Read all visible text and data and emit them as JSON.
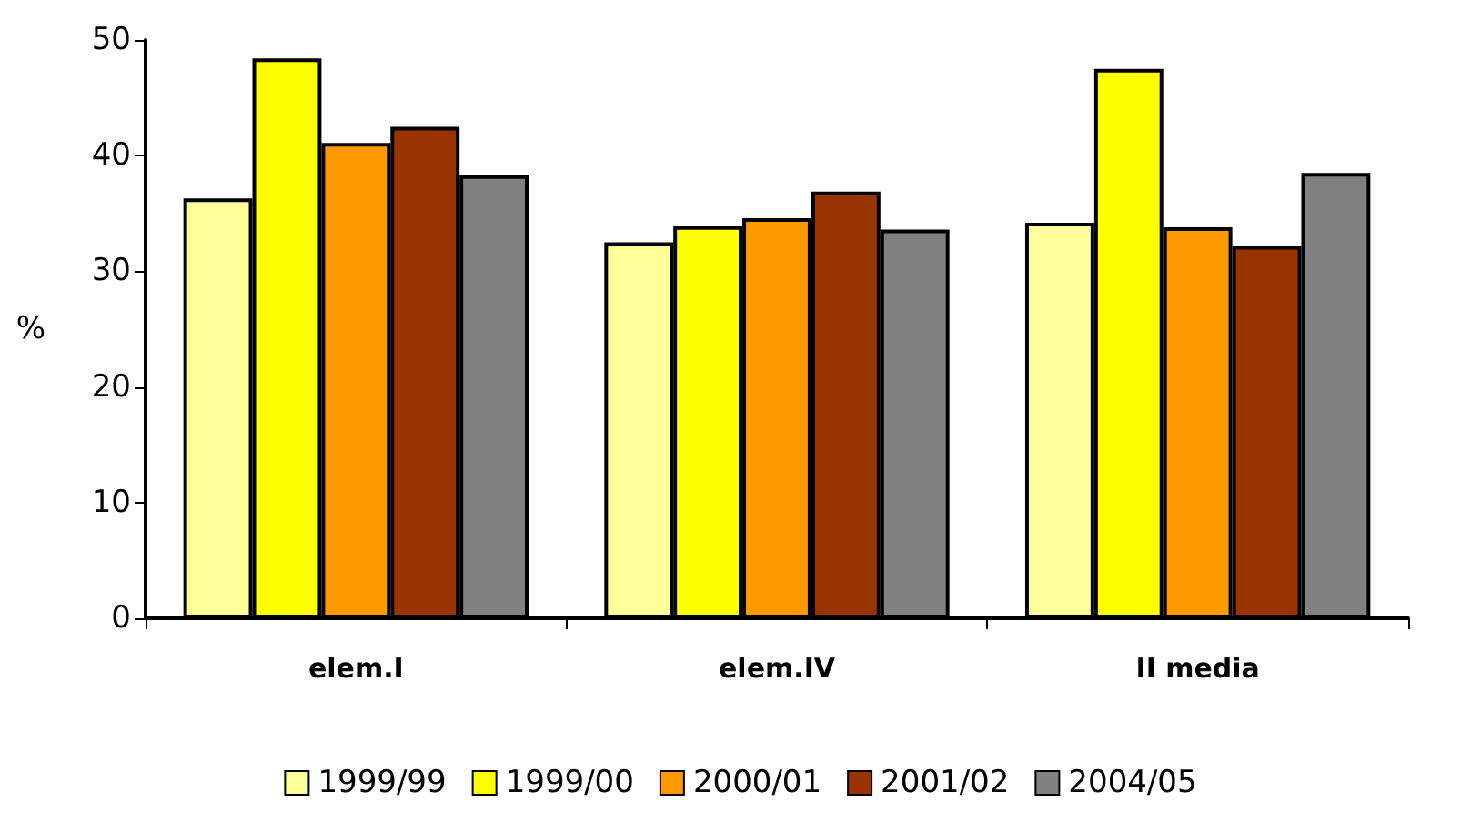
{
  "chart_data": {
    "type": "bar",
    "ylabel": "%",
    "categories": [
      "elem.I",
      "elem.IV",
      "II media"
    ],
    "series": [
      {
        "name": "1999/99",
        "color": "#ffff99",
        "values": [
          36.3,
          32.5,
          34.2
        ]
      },
      {
        "name": "1999/00",
        "color": "#ffff00",
        "values": [
          48.4,
          33.9,
          47.5
        ]
      },
      {
        "name": "2000/01",
        "color": "#ff9900",
        "values": [
          41.1,
          34.6,
          33.8
        ]
      },
      {
        "name": "2001/02",
        "color": "#993300",
        "values": [
          42.5,
          36.9,
          32.2
        ]
      },
      {
        "name": "2004/05",
        "color": "#808080",
        "values": [
          38.3,
          33.6,
          38.5
        ]
      }
    ],
    "ylim": [
      0,
      50
    ],
    "yticks": [
      0,
      10,
      20,
      30,
      40,
      50
    ],
    "grid": false,
    "legend": "bottom"
  }
}
